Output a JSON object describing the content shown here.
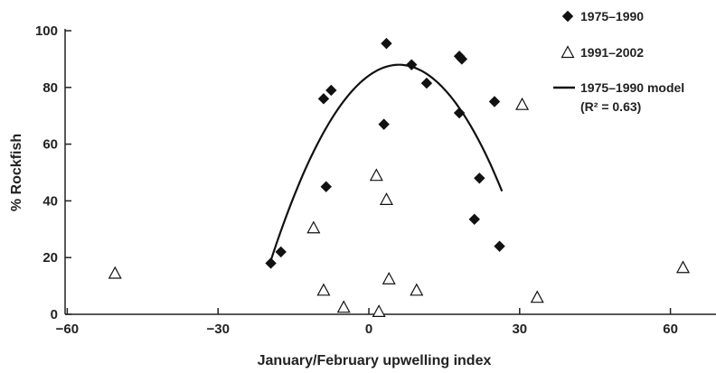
{
  "chart_data": {
    "type": "scatter",
    "xlabel": "January/February upwelling index",
    "ylabel": "% Rockfish",
    "xlim": [
      -60,
      70
    ],
    "ylim": [
      0,
      100
    ],
    "xticks": [
      -60,
      -30,
      0,
      30,
      60
    ],
    "yticks": [
      0,
      20,
      40,
      60,
      80,
      100
    ],
    "grid": false,
    "legend_position": "top-right",
    "series": [
      {
        "name": "1975–1990",
        "marker": "filled-diamond",
        "color": "#111111",
        "points": [
          [
            -19.5,
            18
          ],
          [
            -17.5,
            22
          ],
          [
            -9,
            76
          ],
          [
            -7.5,
            79
          ],
          [
            -8.5,
            45
          ],
          [
            3.5,
            95.5
          ],
          [
            3,
            67
          ],
          [
            8.5,
            88
          ],
          [
            11.5,
            81.5
          ],
          [
            18,
            91
          ],
          [
            18.5,
            90
          ],
          [
            18,
            71
          ],
          [
            25,
            75
          ],
          [
            22,
            48
          ],
          [
            21,
            33.5
          ],
          [
            26,
            24
          ]
        ]
      },
      {
        "name": "1991–2002",
        "marker": "open-triangle",
        "color": "#111111",
        "points": [
          [
            -50.5,
            14.5
          ],
          [
            -11,
            30.5
          ],
          [
            -9,
            8.5
          ],
          [
            -5,
            2.5
          ],
          [
            2,
            1
          ],
          [
            1.5,
            49
          ],
          [
            3.5,
            40.5
          ],
          [
            4,
            12.5
          ],
          [
            9.5,
            8.5
          ],
          [
            30.5,
            74
          ],
          [
            33.5,
            6
          ],
          [
            62.5,
            16.5
          ]
        ]
      },
      {
        "name": "1975–1990 model",
        "name_line2": "(R² = 0.63)",
        "type": "line",
        "color": "#111111",
        "curve": {
          "form": "quadratic",
          "vertex_x": 6,
          "vertex_y": 88,
          "a": -0.1061,
          "x_range": [
            -19.5,
            26.5
          ]
        }
      }
    ]
  }
}
